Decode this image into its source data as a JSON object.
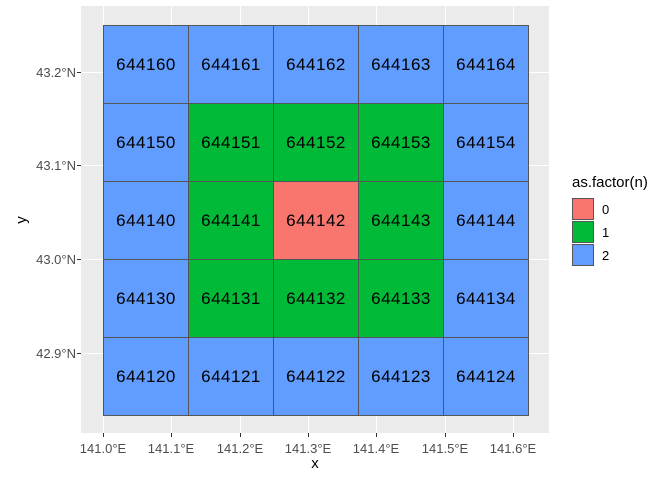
{
  "colors": {
    "panel_bg": "#EBEBEB",
    "gridline": "#FFFFFF",
    "tile_border": "#555555",
    "tick_mark": "#333333",
    "tick_label": "#4D4D4D",
    "text": "#000000",
    "canvas_bg": "#FFFFFF"
  },
  "chart_data": {
    "type": "heatmap",
    "title": "",
    "xlabel": "x",
    "ylabel": "y",
    "x_ticks": [
      "141.0°E",
      "141.1°E",
      "141.2°E",
      "141.3°E",
      "141.4°E",
      "141.5°E",
      "141.6°E"
    ],
    "y_ticks": [
      "43.2°N",
      "43.1°N",
      "43.0°N",
      "42.9°N"
    ],
    "axis_x_range": [
      140.968,
      141.653
    ],
    "axis_y_range": [
      42.813,
      43.27
    ],
    "grid_on": true,
    "legend": {
      "title": "as.factor(n)",
      "position": "right",
      "entries": [
        {
          "label": "0",
          "color": "#F8766D"
        },
        {
          "label": "1",
          "color": "#00BA38"
        },
        {
          "label": "2",
          "color": "#619CFF"
        }
      ]
    },
    "factor_colors": {
      "0": "#F8766D",
      "1": "#00BA38",
      "2": "#619CFF"
    },
    "grid": {
      "nrows": 5,
      "ncols": 5,
      "rows": [
        [
          {
            "label": "644160",
            "n": 2
          },
          {
            "label": "644161",
            "n": 2
          },
          {
            "label": "644162",
            "n": 2
          },
          {
            "label": "644163",
            "n": 2
          },
          {
            "label": "644164",
            "n": 2
          }
        ],
        [
          {
            "label": "644150",
            "n": 2
          },
          {
            "label": "644151",
            "n": 1
          },
          {
            "label": "644152",
            "n": 1
          },
          {
            "label": "644153",
            "n": 1
          },
          {
            "label": "644154",
            "n": 2
          }
        ],
        [
          {
            "label": "644140",
            "n": 2
          },
          {
            "label": "644141",
            "n": 1
          },
          {
            "label": "644142",
            "n": 0
          },
          {
            "label": "644143",
            "n": 1
          },
          {
            "label": "644144",
            "n": 2
          }
        ],
        [
          {
            "label": "644130",
            "n": 2
          },
          {
            "label": "644131",
            "n": 1
          },
          {
            "label": "644132",
            "n": 1
          },
          {
            "label": "644133",
            "n": 1
          },
          {
            "label": "644134",
            "n": 2
          }
        ],
        [
          {
            "label": "644120",
            "n": 2
          },
          {
            "label": "644121",
            "n": 2
          },
          {
            "label": "644122",
            "n": 2
          },
          {
            "label": "644123",
            "n": 2
          },
          {
            "label": "644124",
            "n": 2
          }
        ]
      ]
    }
  }
}
